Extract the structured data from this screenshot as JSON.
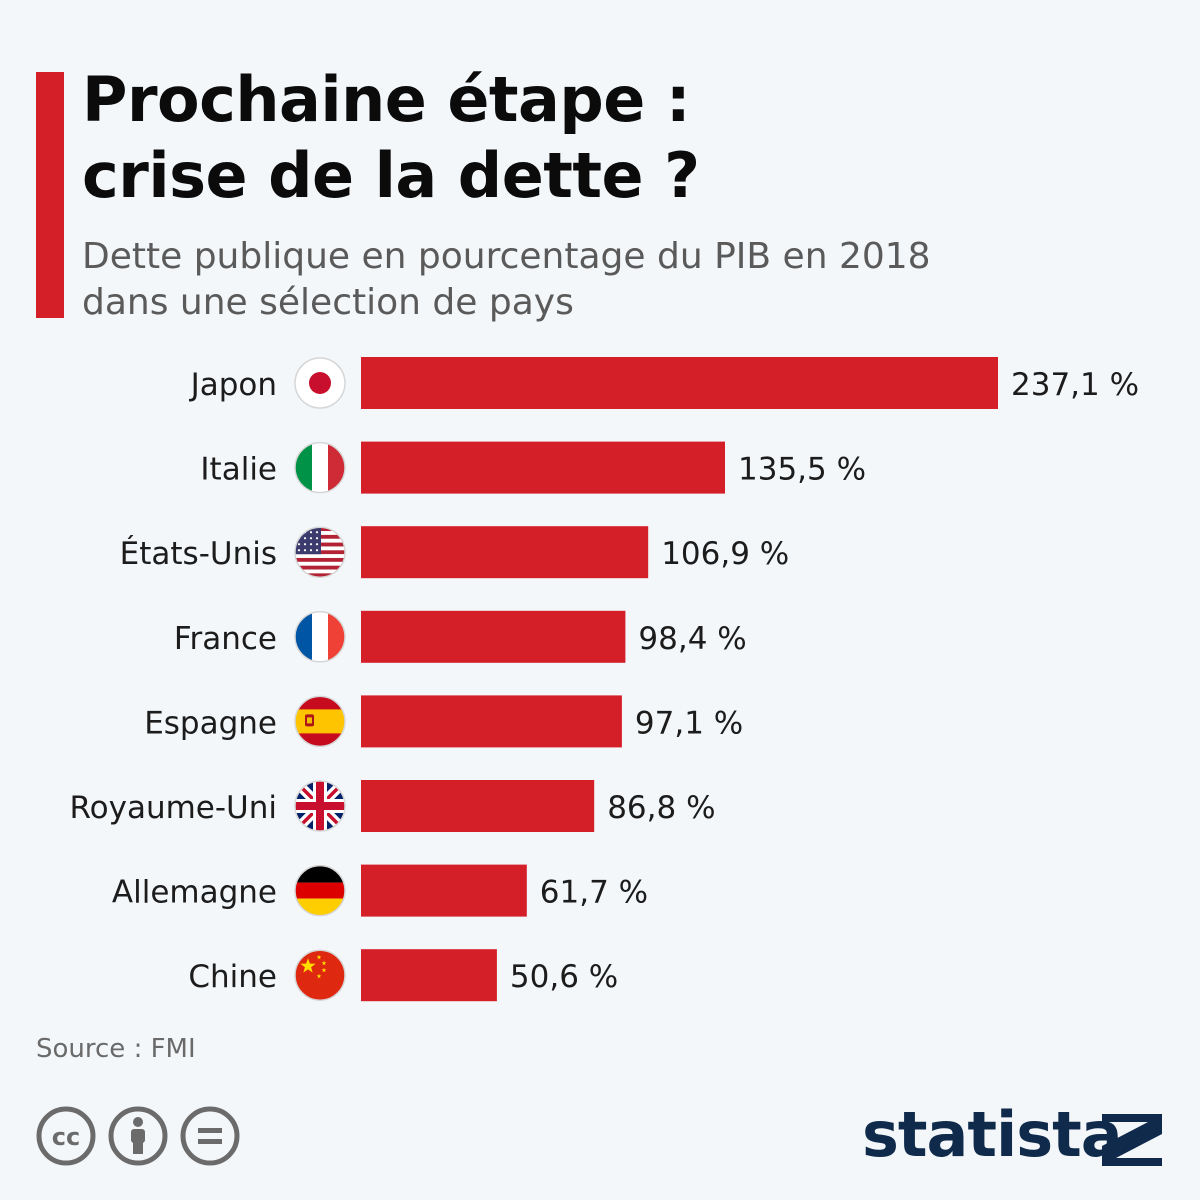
{
  "header": {
    "title_line1": "Prochaine étape :",
    "title_line2": "crise de la dette ?",
    "subtitle_line1": "Dette publique en pourcentage du PIB en 2018",
    "subtitle_line2": "dans une sélection de pays"
  },
  "chart_data": {
    "type": "bar",
    "orientation": "horizontal",
    "title": "Prochaine étape : crise de la dette ?",
    "subtitle": "Dette publique en pourcentage du PIB en 2018 dans une sélection de pays",
    "xlabel": "",
    "ylabel": "",
    "unit": "%",
    "grid": false,
    "categories": [
      "Japon",
      "Italie",
      "États-Unis",
      "France",
      "Espagne",
      "Royaume-Uni",
      "Allemagne",
      "Chine"
    ],
    "values": [
      237.1,
      135.5,
      106.9,
      98.4,
      97.1,
      86.8,
      61.7,
      50.6
    ],
    "value_labels": [
      "237,1 %",
      "135,5 %",
      "106,9 %",
      "98,4 %",
      "97,1 %",
      "86,8 %",
      "61,7 %",
      "50,6 %"
    ],
    "flags": [
      "japan-flag-icon",
      "italy-flag-icon",
      "usa-flag-icon",
      "france-flag-icon",
      "spain-flag-icon",
      "uk-flag-icon",
      "germany-flag-icon",
      "china-flag-icon"
    ],
    "bar_color": "#d41e28"
  },
  "footer": {
    "source": "Source : FMI",
    "brand": "statista",
    "license_icons": [
      "cc-icon",
      "attribution-icon",
      "no-derivatives-icon"
    ]
  },
  "colors": {
    "accent": "#d41e28",
    "background": "#f4f7fa",
    "brand": "#0f2a4a"
  }
}
